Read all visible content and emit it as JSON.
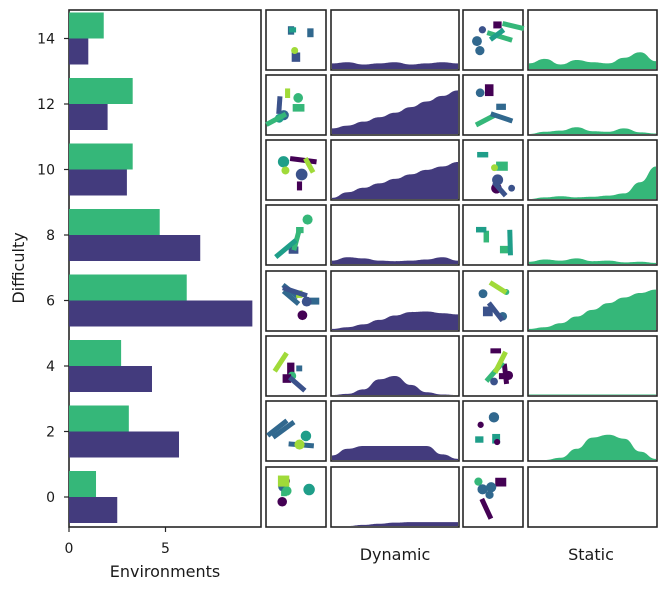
{
  "colors": {
    "dynamic": "#433b7d",
    "static": "#35b779",
    "shapes": [
      "#3b528b",
      "#440154",
      "#35b779",
      "#a0da39",
      "#1f9e89",
      "#31688e"
    ]
  },
  "chart_data": {
    "type": "bar",
    "orientation": "horizontal",
    "title": "",
    "xlabel": "Environments",
    "ylabel": "Difficulty",
    "categories": [
      0,
      2,
      4,
      6,
      8,
      10,
      12,
      14
    ],
    "ytick_labels": [
      "0",
      "2",
      "4",
      "6",
      "8",
      "10",
      "12",
      "14"
    ],
    "xticks": [
      0,
      5
    ],
    "xtick_labels": [
      "0",
      "5"
    ],
    "xlim": [
      0,
      10
    ],
    "series": [
      {
        "name": "Static",
        "color": "#35b779",
        "values": [
          1.4,
          3.1,
          2.7,
          6.1,
          4.7,
          3.3,
          3.3,
          1.8
        ]
      },
      {
        "name": "Dynamic",
        "color": "#433b7d",
        "values": [
          2.5,
          5.7,
          4.3,
          9.5,
          6.8,
          3.0,
          2.0,
          1.0
        ]
      }
    ],
    "density_columns": [
      {
        "label": "Dynamic",
        "color": "#433b7d",
        "rows": [
          [
            0.1,
            0.12,
            0.08,
            0.1,
            0.12,
            0.08,
            0.1,
            0.12,
            0.1
          ],
          [
            0.1,
            0.15,
            0.22,
            0.3,
            0.38,
            0.48,
            0.58,
            0.68,
            0.78
          ],
          [
            0.02,
            0.12,
            0.2,
            0.28,
            0.36,
            0.44,
            0.52,
            0.58,
            0.66
          ],
          [
            0.06,
            0.12,
            0.1,
            0.06,
            0.05,
            0.06,
            0.08,
            0.12,
            0.06
          ],
          [
            0.02,
            0.05,
            0.1,
            0.18,
            0.26,
            0.32,
            0.33,
            0.3,
            0.28
          ],
          [
            0.0,
            0.02,
            0.1,
            0.28,
            0.34,
            0.18,
            0.05,
            0.01,
            0.0
          ],
          [
            0.08,
            0.2,
            0.25,
            0.25,
            0.25,
            0.25,
            0.25,
            0.1,
            0.02
          ],
          [
            0.0,
            0.0,
            0.02,
            0.04,
            0.06,
            0.07,
            0.07,
            0.07,
            0.07
          ]
        ]
      },
      {
        "label": "Static",
        "color": "#35b779",
        "rows": [
          [
            0.1,
            0.18,
            0.08,
            0.16,
            0.12,
            0.1,
            0.2,
            0.3,
            0.14
          ],
          [
            0.0,
            0.04,
            0.06,
            0.12,
            0.05,
            0.04,
            0.1,
            0.03,
            0.01
          ],
          [
            0.0,
            0.03,
            0.05,
            0.03,
            0.04,
            0.06,
            0.1,
            0.3,
            0.58
          ],
          [
            0.04,
            0.08,
            0.06,
            0.1,
            0.05,
            0.06,
            0.03,
            0.04,
            0.02
          ],
          [
            0.02,
            0.05,
            0.12,
            0.24,
            0.36,
            0.48,
            0.58,
            0.66,
            0.72
          ],
          [
            0.01,
            0.01,
            0.01,
            0.01,
            0.01,
            0.01,
            0.01,
            0.01,
            0.01
          ],
          [
            0.0,
            0.0,
            0.04,
            0.2,
            0.4,
            0.45,
            0.38,
            0.15,
            0.02
          ],
          [
            0.0,
            0.0,
            0.0,
            0.0,
            0.0,
            0.0,
            0.0,
            0.0,
            0.0
          ]
        ]
      }
    ]
  }
}
